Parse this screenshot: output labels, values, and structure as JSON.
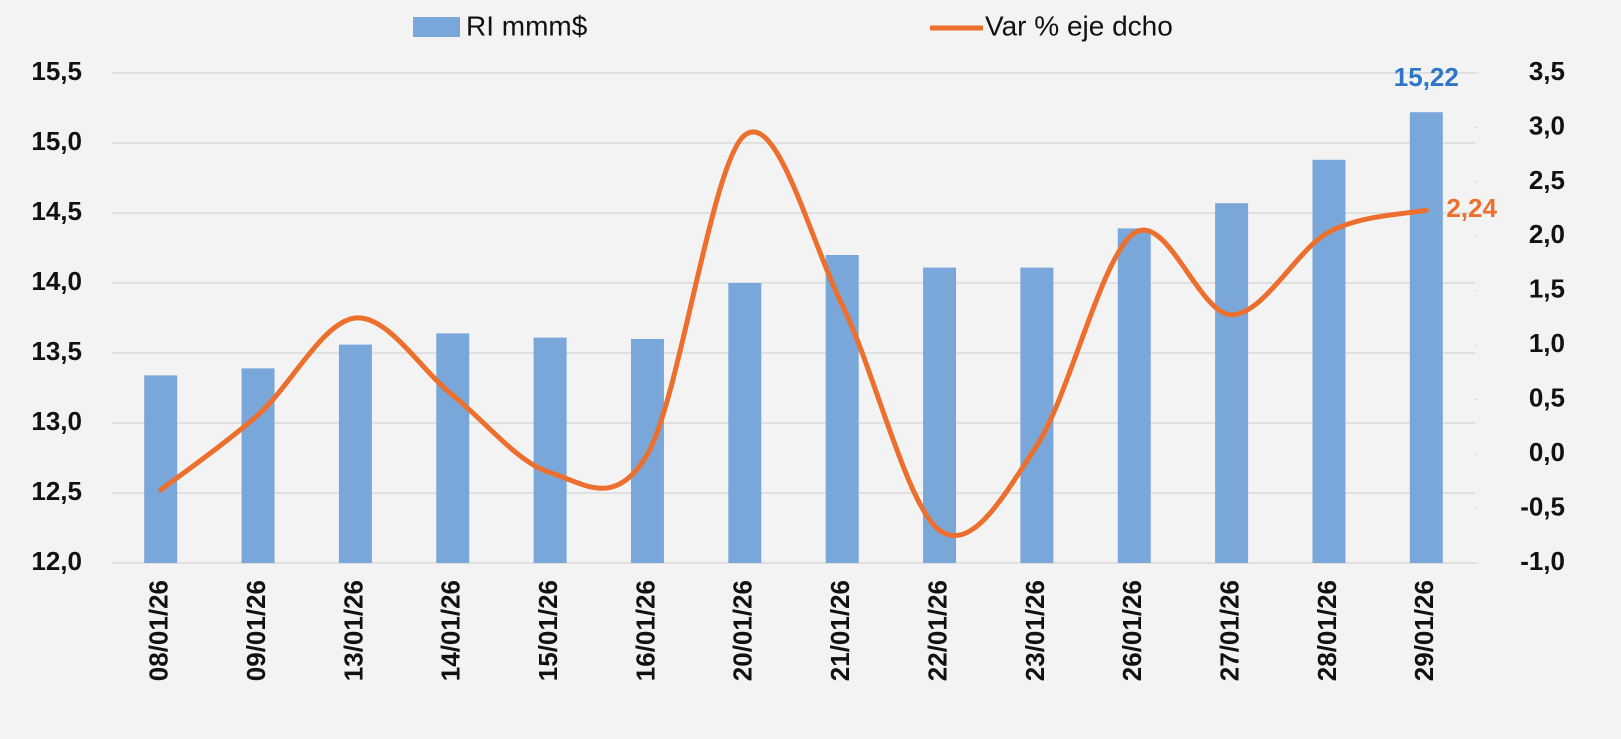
{
  "chart_data": {
    "type": "bar-line",
    "categories": [
      "08/01/26",
      "09/01/26",
      "13/01/26",
      "14/01/26",
      "15/01/26",
      "16/01/26",
      "20/01/26",
      "21/01/26",
      "22/01/26",
      "23/01/26",
      "26/01/26",
      "27/01/26",
      "28/01/26",
      "29/01/26"
    ],
    "series": [
      {
        "name": "RI mmm$",
        "type": "bar",
        "color": "#7aa7d9",
        "values": [
          13.34,
          13.39,
          13.56,
          13.64,
          13.61,
          13.6,
          14.0,
          14.2,
          14.11,
          14.11,
          14.39,
          14.57,
          14.88,
          15.22
        ],
        "value_labels": [
          null,
          null,
          null,
          null,
          null,
          null,
          null,
          null,
          null,
          null,
          null,
          null,
          null,
          "15,22"
        ],
        "label_color": "#2e75c8"
      },
      {
        "name": "Var % eje dcho",
        "type": "line",
        "axis": "y2",
        "color": "#ec6f2d",
        "values": [
          -0.33,
          0.36,
          1.25,
          0.54,
          -0.17,
          0.0,
          2.93,
          1.37,
          -0.7,
          0.08,
          2.03,
          1.28,
          2.04,
          2.24
        ],
        "value_labels": [
          null,
          null,
          null,
          null,
          null,
          null,
          null,
          null,
          null,
          null,
          null,
          null,
          null,
          "2,24"
        ],
        "label_color": "#ec6f2d"
      }
    ],
    "ylim": [
      12,
      15.5
    ],
    "yticks": [
      {
        "value": 12,
        "label": "12,0"
      },
      {
        "value": 12.5,
        "label": "12,5"
      },
      {
        "value": 13,
        "label": "13,0"
      },
      {
        "value": 13.5,
        "label": "13,5"
      },
      {
        "value": 14,
        "label": "14,0"
      },
      {
        "value": 14.5,
        "label": "14,5"
      },
      {
        "value": 15,
        "label": "15,0"
      },
      {
        "value": 15.5,
        "label": "15,5"
      }
    ],
    "y2lim": [
      -1,
      3.5
    ],
    "y2ticks": [
      {
        "value": -1,
        "label": "-1,0"
      },
      {
        "value": -0.5,
        "label": "-0,5"
      },
      {
        "value": 0,
        "label": "0,0"
      },
      {
        "value": 0.5,
        "label": "0,5"
      },
      {
        "value": 1,
        "label": "1,0"
      },
      {
        "value": 1.5,
        "label": "1,5"
      },
      {
        "value": 2,
        "label": "2,0"
      },
      {
        "value": 2.5,
        "label": "2,5"
      },
      {
        "value": 3,
        "label": "3,0"
      },
      {
        "value": 3.5,
        "label": "3,5"
      }
    ],
    "grid": true,
    "smooth": true,
    "legend": "top"
  }
}
